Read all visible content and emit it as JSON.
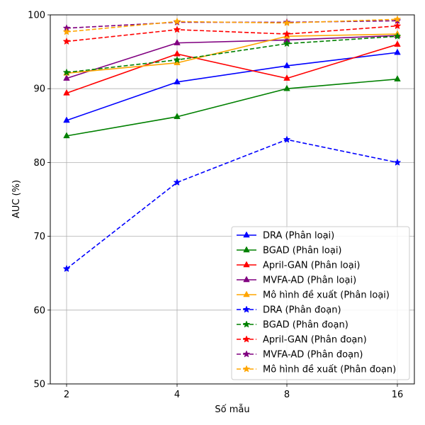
{
  "chart_data": {
    "type": "line",
    "title": "",
    "xlabel": "Số mẫu",
    "ylabel": "AUC (%)",
    "x": [
      "2",
      "4",
      "8",
      "16"
    ],
    "ylim": [
      50,
      100
    ],
    "yticks": [
      50,
      60,
      70,
      80,
      90,
      100
    ],
    "grid": true,
    "legend_position": "lower-right",
    "series": [
      {
        "name": "DRA (Phân loại)",
        "color": "#0000ff",
        "linestyle": "solid",
        "marker": "triangle",
        "values": [
          85.7,
          90.9,
          93.1,
          94.9
        ]
      },
      {
        "name": "BGAD (Phân loại)",
        "color": "#008000",
        "linestyle": "solid",
        "marker": "triangle",
        "values": [
          83.6,
          86.2,
          90.0,
          91.3
        ]
      },
      {
        "name": "April-GAN (Phân loại)",
        "color": "#ff0000",
        "linestyle": "solid",
        "marker": "triangle",
        "values": [
          89.4,
          94.7,
          91.4,
          96.0
        ]
      },
      {
        "name": "MVFA-AD (Phân loại)",
        "color": "#800080",
        "linestyle": "solid",
        "marker": "triangle",
        "values": [
          91.4,
          96.2,
          96.6,
          97.2
        ]
      },
      {
        "name": "Mô hình đề xuất (Phân loại)",
        "color": "#ffa500",
        "linestyle": "solid",
        "marker": "triangle",
        "values": [
          92.1,
          93.5,
          97.1,
          97.4
        ]
      },
      {
        "name": "DRA (Phân đoạn)",
        "color": "#0000ff",
        "linestyle": "dashed",
        "marker": "star",
        "values": [
          65.6,
          77.3,
          83.1,
          80.0
        ]
      },
      {
        "name": "BGAD (Phân đoạn)",
        "color": "#008000",
        "linestyle": "dashed",
        "marker": "star",
        "values": [
          92.2,
          93.9,
          96.1,
          97.1
        ]
      },
      {
        "name": "April-GAN (Phân đoạn)",
        "color": "#ff0000",
        "linestyle": "dashed",
        "marker": "star",
        "values": [
          96.4,
          98.0,
          97.4,
          98.5
        ]
      },
      {
        "name": "MVFA-AD (Phân đoạn)",
        "color": "#800080",
        "linestyle": "dashed",
        "marker": "star",
        "values": [
          98.2,
          99.0,
          99.0,
          99.2
        ]
      },
      {
        "name": "Mô hình đề xuất (Phân đoạn)",
        "color": "#ffa500",
        "linestyle": "dashed",
        "marker": "star",
        "values": [
          97.7,
          99.1,
          98.9,
          99.4
        ]
      }
    ]
  }
}
